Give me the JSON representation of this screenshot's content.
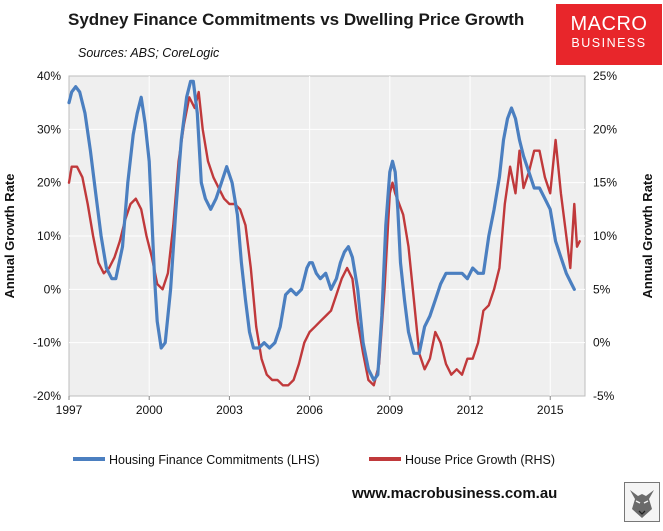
{
  "title": "Sydney Finance Commitments vs Dwelling Price Growth",
  "sources": "Sources: ABS; CoreLogic",
  "logo": {
    "line1": "MACRO",
    "line2": "BUSINESS"
  },
  "footer": "www.macrobusiness.com.au",
  "colors": {
    "lhs_series": "#4b7fc0",
    "rhs_series": "#c0393b",
    "plot_bg": "#efefef",
    "brand": "#e8262b"
  },
  "icons": {
    "logo_mascot": "wolf-icon"
  },
  "chart_data": {
    "type": "line",
    "title": "Sydney Finance Commitments vs Dwelling Price Growth",
    "ylabel_left": "Annual Growth Rate",
    "ylabel_right": "Annual Growth Rate",
    "x_ticks": [
      "1997",
      "2000",
      "2003",
      "2006",
      "2009",
      "2012",
      "2015"
    ],
    "xlim": [
      1997,
      2016.3
    ],
    "ylim_left": [
      -20,
      40
    ],
    "ylim_right": [
      -5,
      25
    ],
    "y_ticks_left": [
      "40%",
      "30%",
      "20%",
      "10%",
      "0%",
      "-10%",
      "-20%"
    ],
    "y_ticks_right": [
      "25%",
      "20%",
      "15%",
      "10%",
      "5%",
      "0%",
      "-5%"
    ],
    "legend": {
      "position": "bottom"
    },
    "series": [
      {
        "name": "Housing Finance Commitments (LHS)",
        "axis": "left",
        "x": [
          1997,
          1997.1,
          1997.25,
          1997.4,
          1997.6,
          1997.8,
          1998,
          1998.2,
          1998.4,
          1998.6,
          1998.75,
          1999,
          1999.2,
          1999.4,
          1999.55,
          1999.7,
          1999.85,
          2000,
          2000.1,
          2000.2,
          2000.3,
          2000.45,
          2000.6,
          2000.8,
          2001,
          2001.2,
          2001.4,
          2001.55,
          2001.65,
          2001.8,
          2001.95,
          2002.1,
          2002.3,
          2002.5,
          2002.7,
          2002.9,
          2003.1,
          2003.3,
          2003.45,
          2003.6,
          2003.75,
          2003.9,
          2004.1,
          2004.3,
          2004.5,
          2004.7,
          2004.9,
          2005.1,
          2005.3,
          2005.5,
          2005.7,
          2005.9,
          2006.0,
          2006.1,
          2006.25,
          2006.4,
          2006.6,
          2006.8,
          2007.0,
          2007.15,
          2007.3,
          2007.45,
          2007.6,
          2007.8,
          2008.0,
          2008.2,
          2008.4,
          2008.55,
          2008.7,
          2008.85,
          2009.0,
          2009.1,
          2009.2,
          2009.3,
          2009.4,
          2009.55,
          2009.7,
          2009.9,
          2010.1,
          2010.3,
          2010.5,
          2010.7,
          2010.9,
          2011.1,
          2011.3,
          2011.5,
          2011.7,
          2011.9,
          2012.1,
          2012.3,
          2012.5,
          2012.7,
          2012.9,
          2013.1,
          2013.25,
          2013.4,
          2013.55,
          2013.7,
          2013.85,
          2014.0,
          2014.2,
          2014.4,
          2014.6,
          2014.8,
          2015.0,
          2015.2,
          2015.4,
          2015.6,
          2015.8,
          2015.9
        ],
        "values": [
          35,
          37,
          38,
          37,
          33,
          26,
          18,
          10,
          4,
          2,
          2,
          8,
          20,
          29,
          33,
          36,
          31,
          24,
          13,
          2,
          -6,
          -11,
          -10,
          0,
          15,
          28,
          36,
          39,
          39,
          33,
          20,
          17,
          15,
          17,
          20,
          23,
          20,
          14,
          5,
          -2,
          -8,
          -11,
          -11,
          -10,
          -11,
          -10,
          -7,
          -1,
          0,
          -1,
          0,
          4,
          5,
          5,
          3,
          2,
          3,
          0,
          2,
          5,
          7,
          8,
          6,
          0,
          -10,
          -15,
          -17,
          -16,
          -5,
          12,
          22,
          24,
          22,
          15,
          5,
          -2,
          -8,
          -12,
          -12,
          -7,
          -5,
          -2,
          1,
          3,
          3,
          3,
          3,
          2,
          4,
          3,
          3,
          10,
          15,
          21,
          28,
          32,
          34,
          32,
          28,
          25,
          22,
          19,
          19,
          17,
          15,
          9,
          6,
          3,
          1,
          0
        ]
      },
      {
        "name": "House Price Growth (RHS)",
        "axis": "right",
        "x": [
          1997,
          1997.1,
          1997.3,
          1997.5,
          1997.7,
          1997.9,
          1998.1,
          1998.3,
          1998.5,
          1998.7,
          1998.9,
          1999.1,
          1999.3,
          1999.5,
          1999.7,
          1999.9,
          2000.1,
          2000.3,
          2000.5,
          2000.7,
          2000.9,
          2001.1,
          2001.3,
          2001.5,
          2001.7,
          2001.85,
          2002.0,
          2002.2,
          2002.4,
          2002.6,
          2002.8,
          2003.0,
          2003.2,
          2003.4,
          2003.6,
          2003.8,
          2004.0,
          2004.2,
          2004.4,
          2004.6,
          2004.8,
          2005.0,
          2005.2,
          2005.4,
          2005.6,
          2005.8,
          2006.0,
          2006.2,
          2006.4,
          2006.6,
          2006.8,
          2007.0,
          2007.2,
          2007.4,
          2007.6,
          2007.8,
          2008.0,
          2008.2,
          2008.4,
          2008.6,
          2008.8,
          2009.0,
          2009.1,
          2009.2,
          2009.35,
          2009.5,
          2009.7,
          2009.9,
          2010.1,
          2010.3,
          2010.5,
          2010.7,
          2010.9,
          2011.1,
          2011.3,
          2011.5,
          2011.7,
          2011.9,
          2012.1,
          2012.3,
          2012.5,
          2012.7,
          2012.9,
          2013.1,
          2013.3,
          2013.5,
          2013.7,
          2013.85,
          2014.0,
          2014.2,
          2014.4,
          2014.6,
          2014.8,
          2015.0,
          2015.2,
          2015.4,
          2015.6,
          2015.75,
          2015.9,
          2016.0,
          2016.1
        ],
        "values": [
          15,
          16.5,
          16.5,
          15.5,
          13,
          10,
          7.5,
          6.5,
          7,
          8,
          9.5,
          11.5,
          13,
          13.5,
          12.5,
          10,
          8,
          5.5,
          5,
          6.5,
          11,
          17,
          20.5,
          23,
          22,
          23.5,
          20,
          17,
          15.5,
          14.5,
          13.5,
          13,
          13,
          12.5,
          11,
          7,
          1.5,
          -1.5,
          -3,
          -3.5,
          -3.5,
          -4,
          -4,
          -3.5,
          -2,
          0,
          1,
          1.5,
          2,
          2.5,
          3,
          4.5,
          6,
          7,
          6,
          2,
          -1,
          -3.5,
          -4,
          -2,
          5,
          14,
          15,
          14,
          13,
          12,
          9,
          4,
          -1,
          -2.5,
          -1.5,
          1,
          0,
          -2,
          -3,
          -2.5,
          -3,
          -1.5,
          -1.5,
          0,
          3,
          3.5,
          5,
          7,
          13,
          16.5,
          14,
          18,
          14.5,
          16,
          18,
          18,
          15.5,
          14,
          19,
          14,
          10,
          7,
          13,
          9,
          9.5
        ]
      }
    ]
  }
}
